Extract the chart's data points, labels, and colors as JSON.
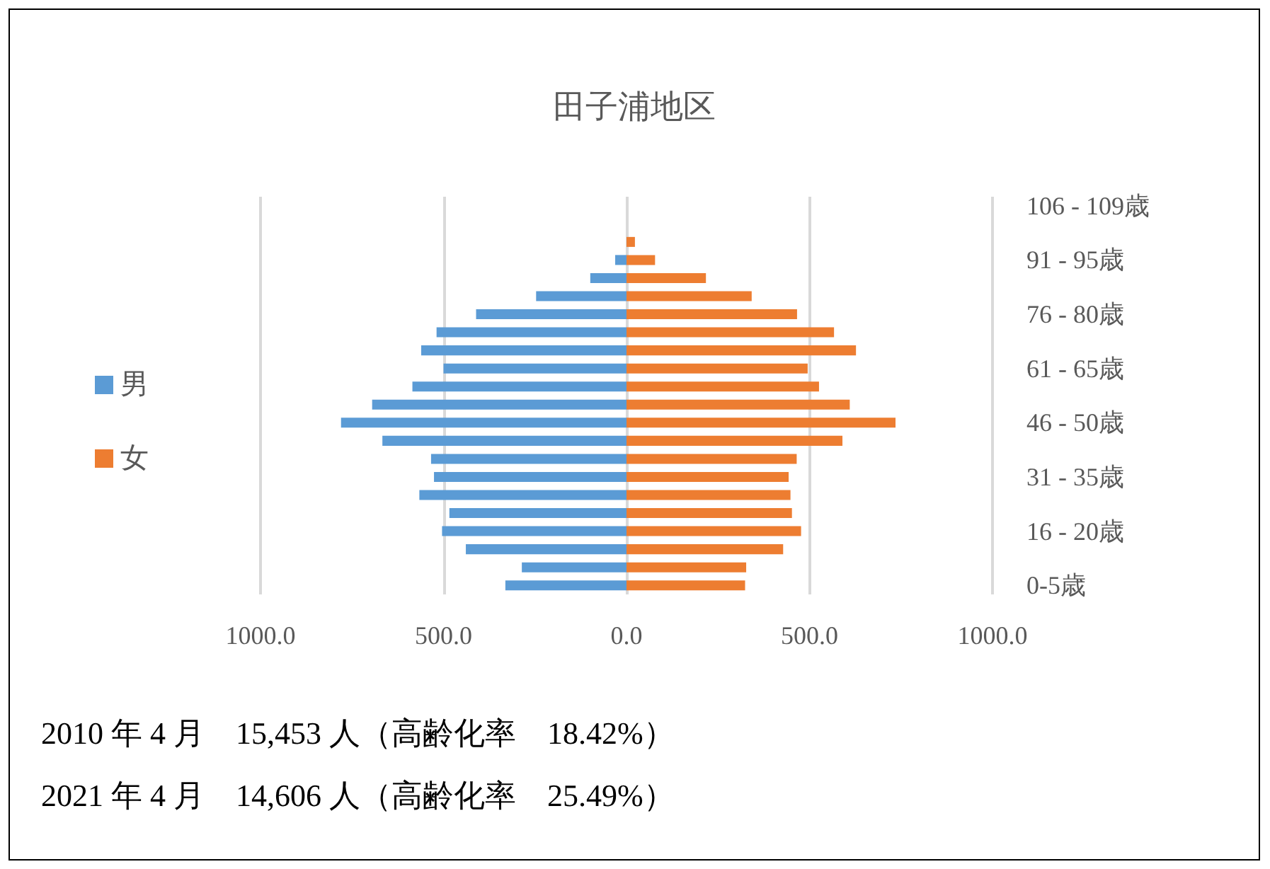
{
  "chart_data": {
    "type": "bar",
    "orientation": "horizontal",
    "stacked": true,
    "title": "田子浦地区",
    "categories": [
      "106 - 109歳",
      null,
      null,
      "91 - 95歳",
      null,
      null,
      "76 - 80歳",
      null,
      null,
      "61 - 65歳",
      null,
      null,
      "46 - 50歳",
      null,
      null,
      "31 - 35歳",
      null,
      null,
      "16 - 20歳",
      null,
      null,
      "0-5歳"
    ],
    "series": [
      {
        "name": "男",
        "color": "#5b9bd5",
        "values": [
          0,
          0,
          0,
          -31,
          -99,
          -247,
          -411,
          -519,
          -561,
          -500,
          -585,
          -695,
          -780,
          -667,
          -534,
          -526,
          -566,
          -484,
          -504,
          -439,
          -286,
          -331
        ]
      },
      {
        "name": "女",
        "color": "#ed7d31",
        "values": [
          0,
          0,
          23,
          78,
          217,
          342,
          466,
          567,
          627,
          495,
          526,
          610,
          735,
          590,
          465,
          443,
          448,
          452,
          477,
          428,
          327,
          324
        ]
      }
    ],
    "xlim": [
      -1000,
      1000
    ],
    "xticks": [
      {
        "value": -1000,
        "label": "1000.0"
      },
      {
        "value": -500,
        "label": "500.0"
      },
      {
        "value": 0,
        "label": "0.0"
      },
      {
        "value": 500,
        "label": "500.0"
      },
      {
        "value": 1000,
        "label": "1000.0"
      }
    ],
    "grid": "x",
    "legend": "left",
    "annotations": [
      "2010 年 4 月　15,453 人（高齢化率　18.42%）",
      "2021 年 4 月　14,606 人（高齢化率　25.49%）"
    ]
  }
}
